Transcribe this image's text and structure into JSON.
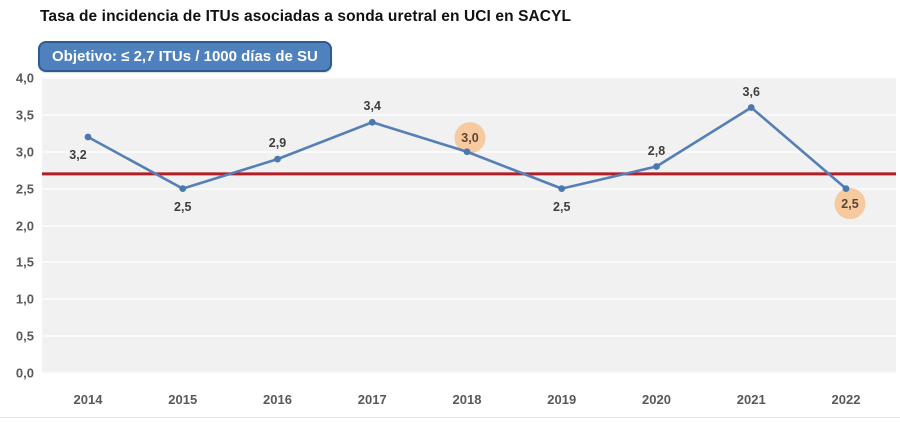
{
  "chart_data": {
    "type": "line",
    "title": "Tasa de incidencia de ITUs asociadas a sonda uretral en UCI en SACYL",
    "target_label": "Objetivo: ≤ 2,7 ITUs / 1000 días de SU",
    "categories": [
      "2014",
      "2015",
      "2016",
      "2017",
      "2018",
      "2019",
      "2020",
      "2021",
      "2022"
    ],
    "values": [
      3.2,
      2.5,
      2.9,
      3.4,
      3.0,
      2.5,
      2.8,
      3.6,
      2.5
    ],
    "point_labels": [
      "3,2",
      "2,5",
      "2,9",
      "3,4",
      "3,0",
      "2,5",
      "2,8",
      "3,6",
      "2,5"
    ],
    "label_positions": [
      "below-left",
      "below",
      "above",
      "above",
      "circle-above",
      "below",
      "above",
      "above",
      "circle-below"
    ],
    "highlighted_categories": [
      "2018",
      "2022"
    ],
    "target_value": 2.7,
    "xlabel": "",
    "ylabel": "",
    "ylim": [
      0,
      4
    ],
    "ytick_step": 0.5,
    "ytick_labels": [
      "0,0",
      "0,5",
      "1,0",
      "1,5",
      "2,0",
      "2,5",
      "3,0",
      "3,5",
      "4,0"
    ],
    "grid": true,
    "legend_position": "none",
    "colors": {
      "series_line": "#567fb6",
      "marker": "#4a78b0",
      "target_line": "#b01f28",
      "highlight_circle": "#f6c99f",
      "highlight_label": "#5d4437",
      "badge_bg": "#4e81bd",
      "badge_border": "#2e5b8f",
      "badge_text": "#ffffff",
      "plot_bg": "#f1f1f1",
      "gridline": "#fafafa",
      "axis_text": "#595959",
      "label_text": "#3f3f3f",
      "title_text": "#111111"
    }
  }
}
